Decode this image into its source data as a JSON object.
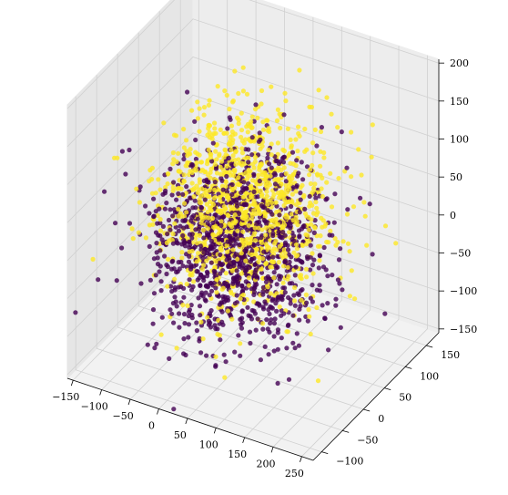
{
  "chart_data": {
    "type": "scatter",
    "projection": "3d",
    "title": "",
    "xlabel": "",
    "ylabel": "",
    "zlabel": "",
    "grid": true,
    "legend": "none",
    "xlim": [
      -160,
      270
    ],
    "ylim": [
      -120,
      180
    ],
    "zlim": [
      -155,
      205
    ],
    "x_ticks": [
      -150,
      -100,
      -50,
      0,
      50,
      100,
      150,
      200,
      250
    ],
    "y_ticks": [
      -100,
      -50,
      0,
      50,
      100,
      150
    ],
    "z_ticks": [
      -150,
      -100,
      -50,
      0,
      50,
      100,
      150,
      200
    ],
    "x_tick_labels": [
      "−150",
      "−100",
      "−50",
      "0",
      "50",
      "100",
      "150",
      "200",
      "250"
    ],
    "y_tick_labels": [
      "−100",
      "−50",
      "0",
      "50",
      "100",
      "150"
    ],
    "z_tick_labels": [
      "−150",
      "−100",
      "−50",
      "0",
      "50",
      "100",
      "150",
      "200"
    ],
    "colors": {
      "class_0": "#440154",
      "class_1": "#fde725"
    },
    "marker_alpha": 0.8,
    "distribution_note_values": {
      "x_center": 30,
      "y_center": 30,
      "z_center": 0,
      "x_spread": 65,
      "y_spread": 55,
      "z_spread": 55
    },
    "series": [
      {
        "class": 0,
        "points": [
          [
            -60,
            40,
            -50
          ],
          [
            -20,
            10,
            -80
          ],
          [
            10,
            50,
            -30
          ],
          [
            40,
            -10,
            -60
          ],
          [
            -40,
            70,
            20
          ],
          [
            0,
            20,
            10
          ],
          [
            30,
            60,
            -90
          ],
          [
            -80,
            30,
            -20
          ],
          [
            20,
            -30,
            -40
          ],
          [
            60,
            20,
            -100
          ],
          [
            -30,
            -20,
            -60
          ],
          [
            10,
            80,
            -10
          ],
          [
            50,
            40,
            30
          ],
          [
            -10,
            0,
            -110
          ],
          [
            -50,
            20,
            40
          ],
          [
            80,
            10,
            -70
          ],
          [
            20,
            30,
            -20
          ],
          [
            -20,
            60,
            60
          ],
          [
            40,
            70,
            -50
          ],
          [
            0,
            -40,
            -80
          ],
          [
            100,
            0,
            -30
          ],
          [
            -70,
            50,
            10
          ],
          [
            30,
            10,
            50
          ],
          [
            -40,
            -10,
            -10
          ],
          [
            70,
            50,
            -120
          ],
          [
            -10,
            90,
            -40
          ],
          [
            50,
            -20,
            0
          ],
          [
            10,
            40,
            80
          ],
          [
            -60,
            0,
            -90
          ],
          [
            90,
            30,
            20
          ],
          [
            20,
            70,
            -70
          ],
          [
            -30,
            40,
            -130
          ],
          [
            60,
            -40,
            -20
          ],
          [
            0,
            60,
            30
          ],
          [
            130,
            -20,
            -60
          ],
          [
            -90,
            20,
            -40
          ],
          [
            40,
            0,
            70
          ],
          [
            -20,
            -30,
            10
          ],
          [
            110,
            40,
            -90
          ],
          [
            10,
            10,
            -60
          ],
          [
            -50,
            80,
            -60
          ],
          [
            70,
            -10,
            40
          ],
          [
            30,
            90,
            10
          ],
          [
            -10,
            20,
            90
          ],
          [
            150,
            10,
            -40
          ],
          [
            -110,
            40,
            10
          ],
          [
            0,
            30,
            -100
          ],
          [
            80,
            60,
            0
          ],
          [
            -40,
            50,
            -80
          ],
          [
            50,
            30,
            -140
          ]
        ]
      },
      {
        "class": 1,
        "points": [
          [
            -40,
            60,
            50
          ],
          [
            0,
            40,
            90
          ],
          [
            30,
            80,
            60
          ],
          [
            -20,
            100,
            40
          ],
          [
            60,
            60,
            100
          ],
          [
            -60,
            30,
            70
          ],
          [
            20,
            20,
            120
          ],
          [
            80,
            90,
            30
          ],
          [
            -30,
            70,
            0
          ],
          [
            40,
            40,
            80
          ],
          [
            10,
            110,
            20
          ],
          [
            -70,
            80,
            30
          ],
          [
            100,
            50,
            60
          ],
          [
            50,
            100,
            -10
          ],
          [
            -10,
            50,
            110
          ],
          [
            70,
            20,
            50
          ],
          [
            20,
            90,
            130
          ],
          [
            -50,
            40,
            -20
          ],
          [
            120,
            70,
            10
          ],
          [
            0,
            80,
            70
          ],
          [
            90,
            110,
            80
          ],
          [
            -80,
            60,
            -30
          ],
          [
            30,
            50,
            40
          ],
          [
            60,
            130,
            50
          ],
          [
            -20,
            30,
            60
          ],
          [
            140,
            40,
            20
          ],
          [
            40,
            70,
            150
          ],
          [
            -40,
            90,
            80
          ],
          [
            10,
            60,
            -40
          ],
          [
            80,
            40,
            110
          ],
          [
            -60,
            110,
            10
          ],
          [
            110,
            100,
            40
          ],
          [
            50,
            20,
            90
          ],
          [
            20,
            130,
            -20
          ],
          [
            -30,
            20,
            30
          ],
          [
            150,
            80,
            -10
          ],
          [
            0,
            100,
            100
          ],
          [
            70,
            70,
            70
          ],
          [
            -90,
            50,
            40
          ],
          [
            30,
            30,
            -30
          ],
          [
            100,
            120,
            0
          ],
          [
            -10,
            70,
            140
          ],
          [
            60,
            90,
            -50
          ],
          [
            40,
            110,
            120
          ],
          [
            -50,
            20,
            90
          ],
          [
            90,
            60,
            -40
          ],
          [
            180,
            90,
            -20
          ],
          [
            10,
            40,
            50
          ],
          [
            -20,
            120,
            70
          ],
          [
            130,
            30,
            80
          ]
        ]
      }
    ]
  }
}
